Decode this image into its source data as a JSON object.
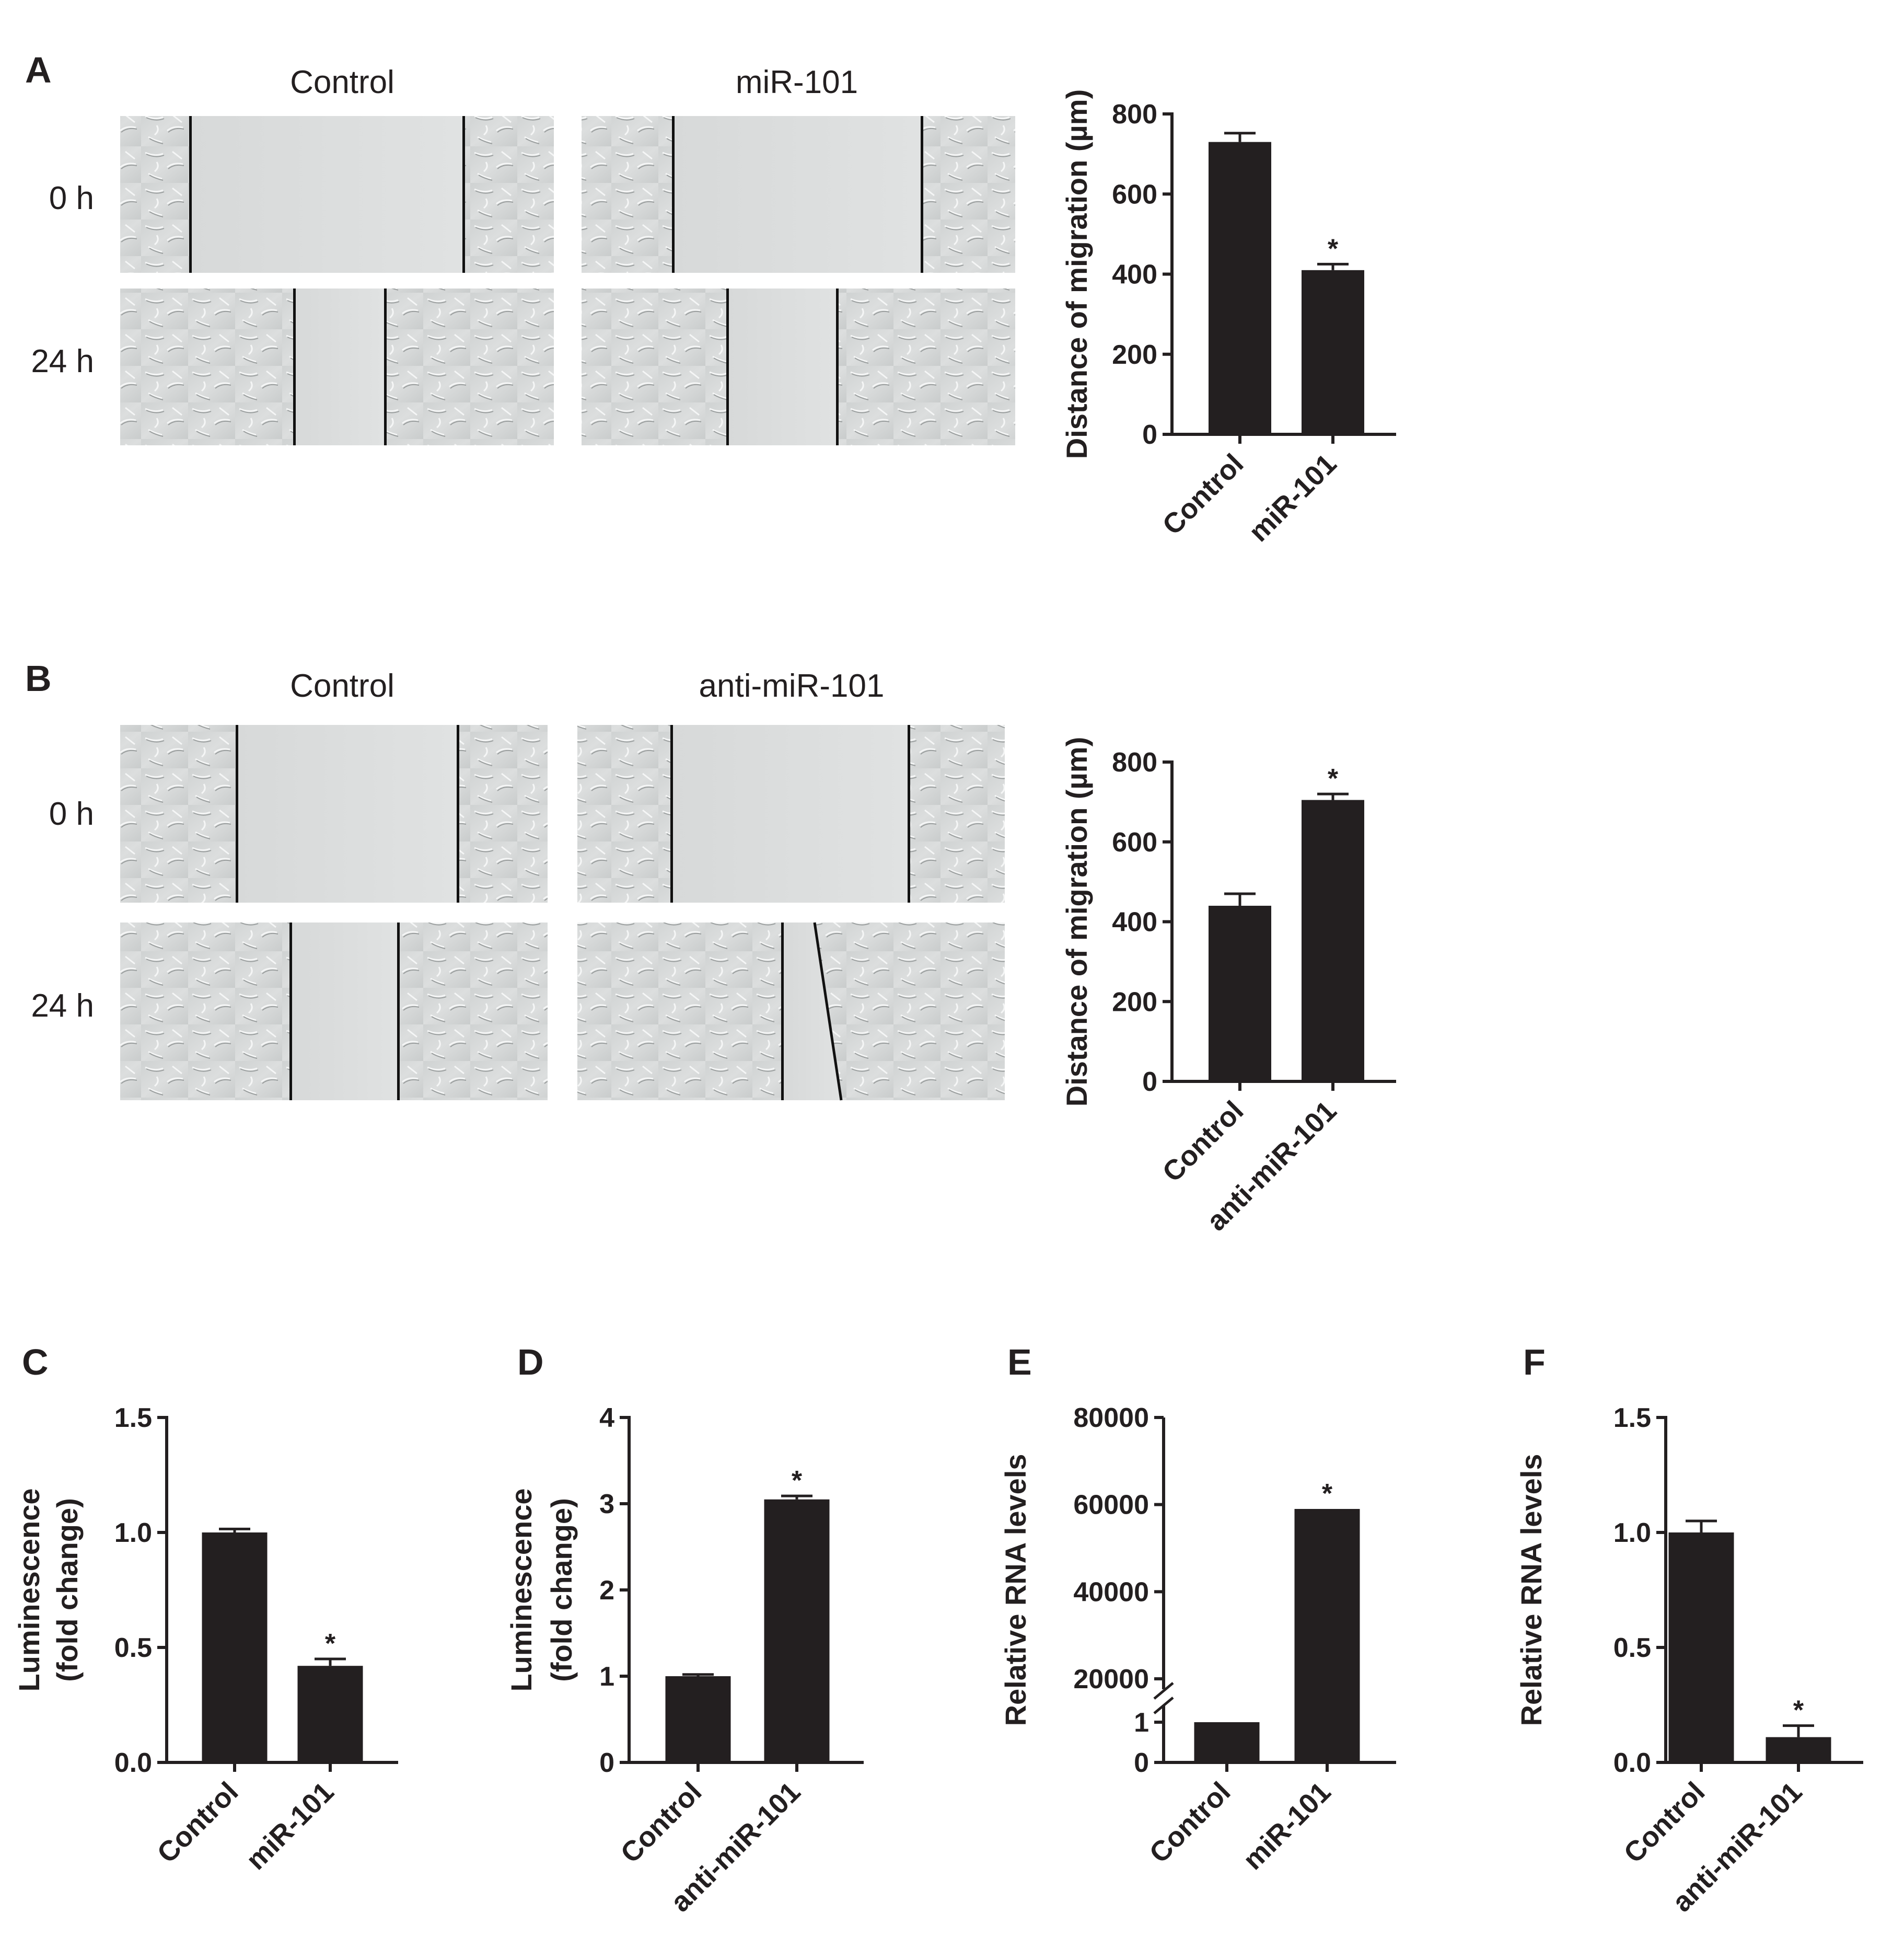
{
  "panels": {
    "A": {
      "letter": "A",
      "col_labels": [
        "Control",
        "miR-101"
      ],
      "row_labels": [
        "0 h",
        "24 h"
      ]
    },
    "B": {
      "letter": "B",
      "col_labels": [
        "Control",
        "anti-miR-101"
      ],
      "row_labels": [
        "0 h",
        "24 h"
      ]
    },
    "C": {
      "letter": "C"
    },
    "D": {
      "letter": "D"
    },
    "E": {
      "letter": "E"
    },
    "F": {
      "letter": "F"
    }
  },
  "chart_data": [
    {
      "id": "A",
      "type": "bar",
      "categories": [
        "Control",
        "miR-101"
      ],
      "values": [
        730,
        410
      ],
      "errors": [
        22,
        15
      ],
      "significance": [
        "",
        "*"
      ],
      "ylabel": "Distance of migration (µm)",
      "ylim": [
        0,
        800
      ],
      "yticks": [
        "0",
        "200",
        "400",
        "600",
        "800"
      ],
      "ytick_values": [
        0,
        200,
        400,
        600,
        800
      ]
    },
    {
      "id": "B",
      "type": "bar",
      "categories": [
        "Control",
        "anti-miR-101"
      ],
      "values": [
        440,
        705
      ],
      "errors": [
        30,
        15
      ],
      "significance": [
        "",
        "*"
      ],
      "ylabel": "Distance of migration (µm)",
      "ylim": [
        0,
        800
      ],
      "yticks": [
        "0",
        "200",
        "400",
        "600",
        "800"
      ],
      "ytick_values": [
        0,
        200,
        400,
        600,
        800
      ]
    },
    {
      "id": "C",
      "type": "bar",
      "categories": [
        "Control",
        "miR-101"
      ],
      "values": [
        1.0,
        0.42
      ],
      "errors": [
        0.015,
        0.03
      ],
      "significance": [
        "",
        "*"
      ],
      "ylabel": [
        "Luminescence",
        "(fold change)"
      ],
      "ylim": [
        0,
        1.5
      ],
      "yticks": [
        "0.0",
        "0.5",
        "1.0",
        "1.5"
      ],
      "ytick_values": [
        0,
        0.5,
        1.0,
        1.5
      ]
    },
    {
      "id": "D",
      "type": "bar",
      "categories": [
        "Control",
        "anti-miR-101"
      ],
      "values": [
        1.0,
        3.05
      ],
      "errors": [
        0.02,
        0.04
      ],
      "significance": [
        "",
        "*"
      ],
      "ylabel": [
        "Luminescence",
        "(fold change)"
      ],
      "ylim": [
        0,
        4
      ],
      "yticks": [
        "0",
        "1",
        "2",
        "3",
        "4"
      ],
      "ytick_values": [
        0,
        1,
        2,
        3,
        4
      ]
    },
    {
      "id": "E",
      "type": "bar",
      "broken_axis": true,
      "categories": [
        "Control",
        "miR-101"
      ],
      "values": [
        1,
        59000
      ],
      "errors": [
        0,
        0
      ],
      "significance": [
        "",
        "*"
      ],
      "ylabel": "Relative RNA levels",
      "yticks": [
        "0",
        "1",
        "20000",
        "40000",
        "60000",
        "80000"
      ],
      "ytick_values": [
        0,
        1,
        20000,
        40000,
        60000,
        80000
      ],
      "lower_range": [
        0,
        1
      ],
      "upper_range": [
        20000,
        80000
      ]
    },
    {
      "id": "F",
      "type": "bar",
      "categories": [
        "Control",
        "anti-miR-101"
      ],
      "values": [
        1.0,
        0.11
      ],
      "errors": [
        0.05,
        0.05
      ],
      "significance": [
        "",
        "*"
      ],
      "ylabel": "Relative RNA levels",
      "ylim": [
        0,
        1.5
      ],
      "yticks": [
        "0.0",
        "0.5",
        "1.0",
        "1.5"
      ],
      "ytick_values": [
        0,
        0.5,
        1.0,
        1.5
      ]
    }
  ]
}
